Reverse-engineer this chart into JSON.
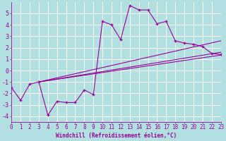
{
  "xlabel": "Windchill (Refroidissement éolien,°C)",
  "background_color": "#b2e0e0",
  "grid_color": "#ffffff",
  "line_color": "#990099",
  "xlim": [
    0,
    23
  ],
  "ylim": [
    -4.5,
    6.0
  ],
  "xticks": [
    0,
    1,
    2,
    3,
    4,
    5,
    6,
    7,
    8,
    9,
    10,
    11,
    12,
    13,
    14,
    15,
    16,
    17,
    18,
    19,
    20,
    21,
    22,
    23
  ],
  "yticks": [
    -4,
    -3,
    -2,
    -1,
    0,
    1,
    2,
    3,
    4,
    5
  ],
  "series1_x": [
    0,
    1,
    2,
    3,
    4,
    5,
    6,
    7,
    8,
    9,
    10,
    11,
    12,
    13,
    14,
    15,
    16,
    17,
    18,
    19,
    20,
    21,
    22,
    23
  ],
  "series1_y": [
    -1.5,
    -2.6,
    -1.2,
    -1.0,
    -3.9,
    -2.7,
    -2.8,
    -2.8,
    -1.7,
    -2.1,
    4.3,
    4.0,
    2.7,
    5.7,
    5.3,
    5.3,
    4.1,
    4.3,
    2.6,
    2.4,
    2.3,
    2.1,
    1.5,
    1.4
  ],
  "line1_x": [
    3,
    23
  ],
  "line1_y": [
    -1.0,
    1.35
  ],
  "line2_x": [
    3,
    23
  ],
  "line2_y": [
    -1.0,
    1.6
  ],
  "line3_x": [
    3,
    23
  ],
  "line3_y": [
    -1.0,
    2.6
  ],
  "xlabel_fontsize": 5.5,
  "tick_fontsize": 5.5
}
